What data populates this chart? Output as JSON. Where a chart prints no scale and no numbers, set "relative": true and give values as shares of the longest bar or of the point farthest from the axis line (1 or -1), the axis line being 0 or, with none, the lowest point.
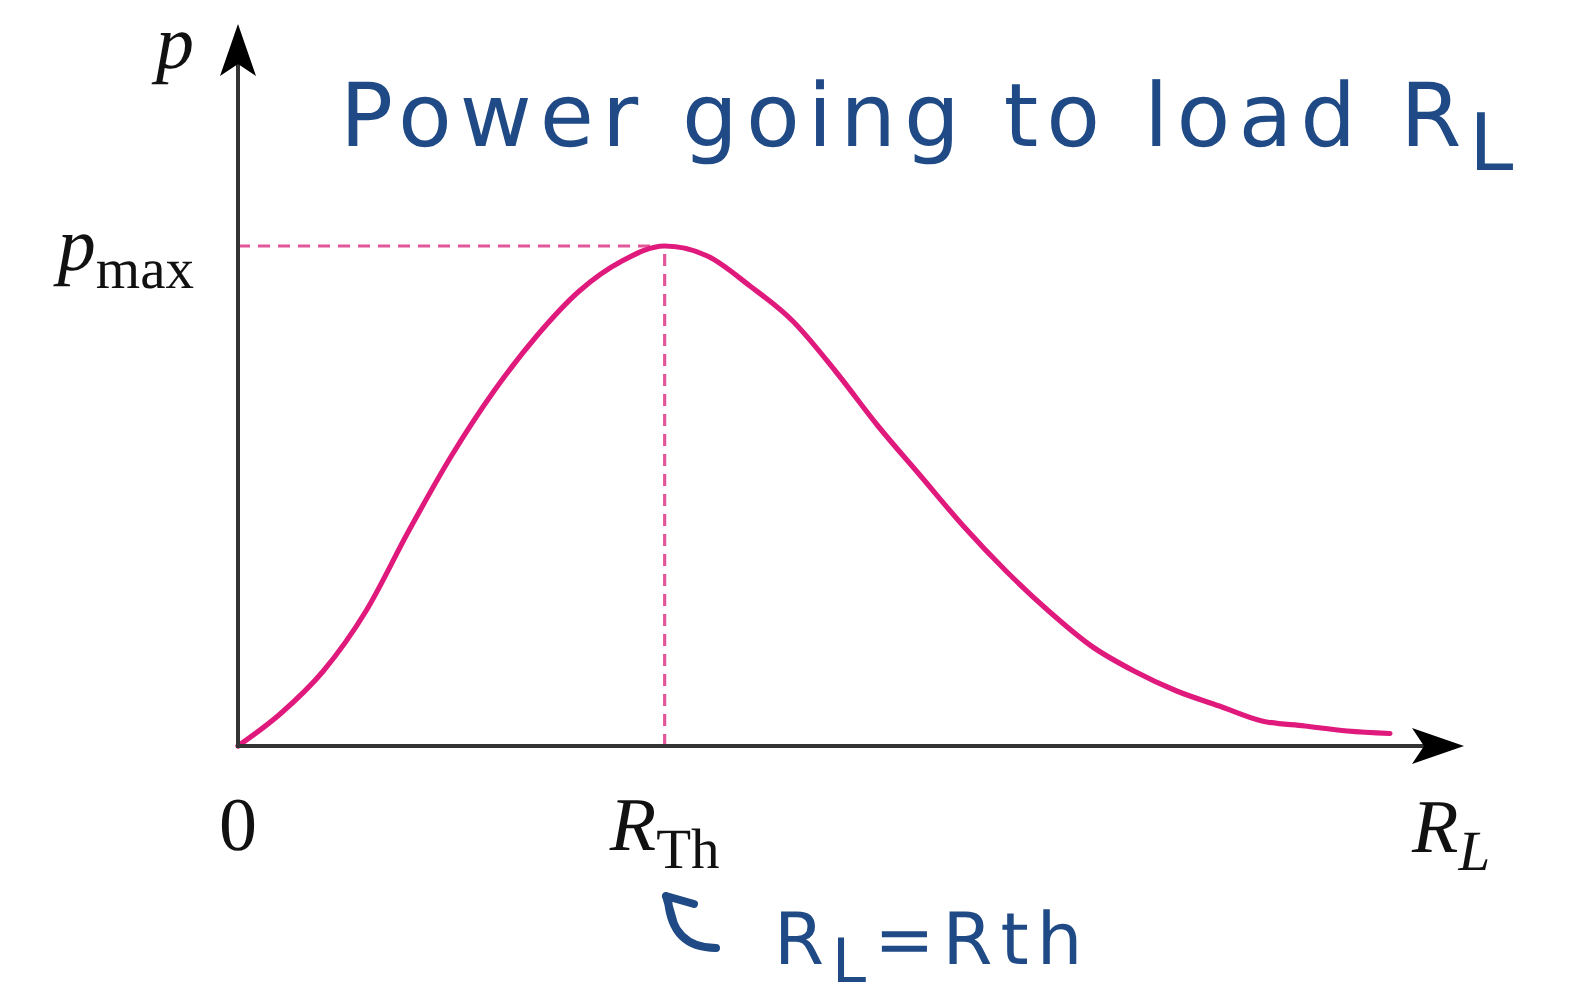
{
  "chart_data": {
    "type": "line",
    "relative": true,
    "xlabel": "R$_{L}$",
    "ylabel": "p",
    "categories": [
      "0",
      null,
      null,
      null,
      null,
      null,
      null,
      null,
      null,
      null,
      "R$_{Th}$",
      null,
      null,
      null,
      null,
      null,
      null,
      null,
      null,
      null,
      null,
      null,
      null,
      null,
      null,
      null,
      null,
      null
    ],
    "series": [
      {
        "color": "#e0197d",
        "values": [
          0,
          0.065,
          0.15,
          0.27,
          0.43,
          0.58,
          0.71,
          0.82,
          0.91,
          0.97,
          1,
          0.98,
          0.92,
          0.85,
          0.75,
          0.64,
          0.54,
          0.44,
          0.35,
          0.27,
          0.2,
          0.15,
          0.11,
          0.08,
          0.05,
          0.04,
          0.03,
          0.025
        ]
      }
    ],
    "ref_lines": [
      {
        "axis": "y",
        "value": 1,
        "label": "p$_{max}$",
        "color": "#e4569a",
        "line_style": "dashed"
      },
      {
        "axis": "x",
        "value": "R$_{Th}$",
        "color": "#e4569a",
        "line_style": "dashed"
      }
    ],
    "annotations": [
      "Power going to load R$_{L}$",
      "R$_{L}$=Rth"
    ]
  }
}
